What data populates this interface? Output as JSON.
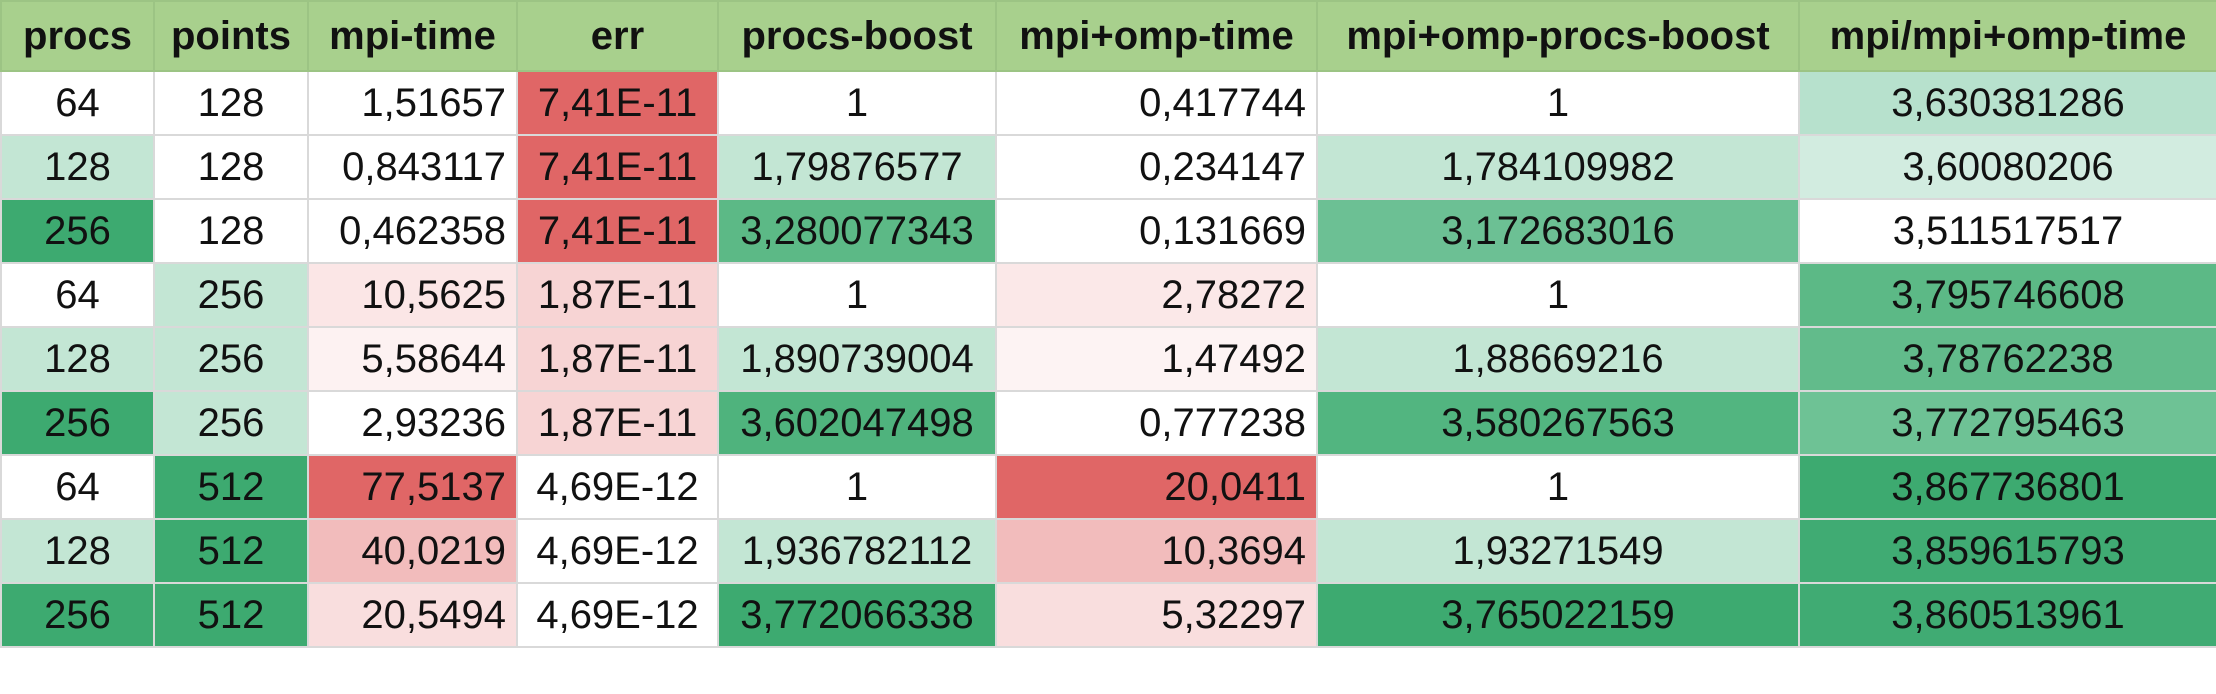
{
  "columns": [
    {
      "label": "procs",
      "align": "c"
    },
    {
      "label": "points",
      "align": "c"
    },
    {
      "label": "mpi-time",
      "align": "r"
    },
    {
      "label": "err",
      "align": "c"
    },
    {
      "label": "procs-boost",
      "align": "c"
    },
    {
      "label": "mpi+omp-time",
      "align": "r"
    },
    {
      "label": "mpi+omp-procs-boost",
      "align": "c"
    },
    {
      "label": "mpi/mpi+omp-time",
      "align": "c"
    }
  ],
  "rows": [
    {
      "cells": [
        "64",
        "128",
        "1,51657",
        "7,41E-11",
        "1",
        "0,417744",
        "1",
        "3,630381286"
      ],
      "fills": [
        "#ffffff",
        "#ffffff",
        "#ffffff",
        "#e06666",
        "#ffffff",
        "#ffffff",
        "#ffffff",
        "#b7e1cd"
      ]
    },
    {
      "cells": [
        "128",
        "128",
        "0,843117",
        "7,41E-11",
        "1,79876577",
        "0,234147",
        "1,784109982",
        "3,60080206"
      ],
      "fills": [
        "#c3e6d4",
        "#ffffff",
        "#ffffff",
        "#e06666",
        "#c3e6d4",
        "#ffffff",
        "#c3e6d4",
        "#d2ece0"
      ]
    },
    {
      "cells": [
        "256",
        "128",
        "0,462358",
        "7,41E-11",
        "3,280077343",
        "0,131669",
        "3,172683016",
        "3,511517517"
      ],
      "fills": [
        "#3daa70",
        "#ffffff",
        "#ffffff",
        "#e06666",
        "#5cb986",
        "#ffffff",
        "#6cc094",
        "#ffffff"
      ]
    },
    {
      "cells": [
        "64",
        "256",
        "10,5625",
        "1,87E-11",
        "1",
        "2,78272",
        "1",
        "3,795746608"
      ],
      "fills": [
        "#ffffff",
        "#c3e6d4",
        "#fbe6e6",
        "#f7d4d4",
        "#ffffff",
        "#fbe8e8",
        "#ffffff",
        "#5cb986"
      ]
    },
    {
      "cells": [
        "128",
        "256",
        "5,58644",
        "1,87E-11",
        "1,890739004",
        "1,47492",
        "1,88669216",
        "3,78762238"
      ],
      "fills": [
        "#c3e6d4",
        "#c3e6d4",
        "#fdf2f2",
        "#f7d4d4",
        "#c3e6d4",
        "#fdf3f3",
        "#c3e6d4",
        "#62bb8b"
      ]
    },
    {
      "cells": [
        "256",
        "256",
        "2,93236",
        "1,87E-11",
        "3,602047498",
        "0,777238",
        "3,580267563",
        "3,772795463"
      ],
      "fills": [
        "#3daa70",
        "#c3e6d4",
        "#ffffff",
        "#f7d4d4",
        "#4fb37d",
        "#ffffff",
        "#52b580",
        "#6ec295"
      ]
    },
    {
      "cells": [
        "64",
        "512",
        "77,5137",
        "4,69E-12",
        "1",
        "20,0411",
        "1",
        "3,867736801"
      ],
      "fills": [
        "#ffffff",
        "#3daa70",
        "#e06666",
        "#ffffff",
        "#ffffff",
        "#e06666",
        "#ffffff",
        "#3daa70"
      ]
    },
    {
      "cells": [
        "128",
        "512",
        "40,0219",
        "4,69E-12",
        "1,936782112",
        "10,3694",
        "1,93271549",
        "3,859615793"
      ],
      "fills": [
        "#c3e6d4",
        "#3daa70",
        "#f2bcbc",
        "#ffffff",
        "#c3e6d4",
        "#f2bcbc",
        "#c3e6d4",
        "#40ab73"
      ]
    },
    {
      "cells": [
        "256",
        "512",
        "20,5494",
        "4,69E-12",
        "3,772066338",
        "5,32297",
        "3,765022159",
        "3,860513961"
      ],
      "fills": [
        "#3daa70",
        "#3daa70",
        "#f9dede",
        "#ffffff",
        "#3daa70",
        "#f9dede",
        "#3daa70",
        "#40ab73"
      ]
    }
  ]
}
